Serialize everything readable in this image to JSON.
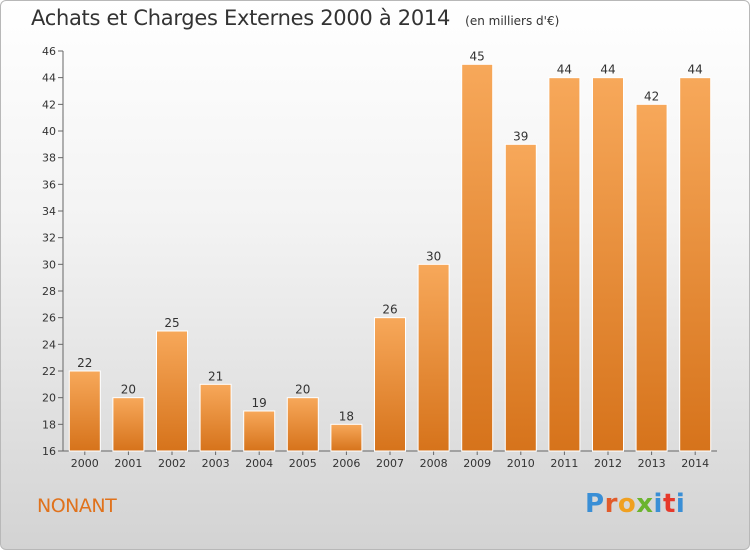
{
  "header": {
    "title": "Achats et Charges Externes 2000 à 2014",
    "subtitle": "(en milliers d'€)"
  },
  "footer": {
    "commune": "NONANT",
    "logo": "Proxiti"
  },
  "colors": {
    "bar_light": "#f7a85a",
    "bar_dark": "#d6731b",
    "commune_text": "#e0721c"
  },
  "chart_data": {
    "type": "bar",
    "categories": [
      "2000",
      "2001",
      "2002",
      "2003",
      "2004",
      "2005",
      "2006",
      "2007",
      "2008",
      "2009",
      "2010",
      "2011",
      "2012",
      "2013",
      "2014"
    ],
    "values": [
      22,
      20,
      25,
      21,
      19,
      20,
      18,
      26,
      30,
      45,
      39,
      44,
      44,
      42,
      44
    ],
    "title": "Achats et Charges Externes 2000 à 2014",
    "subtitle": "(en milliers d'€)",
    "xlabel": "",
    "ylabel": "",
    "ylim": [
      16,
      46
    ],
    "yticks": [
      16,
      18,
      20,
      22,
      24,
      26,
      28,
      30,
      32,
      34,
      36,
      38,
      40,
      42,
      44,
      46
    ],
    "grid": false,
    "data_labels": true
  }
}
